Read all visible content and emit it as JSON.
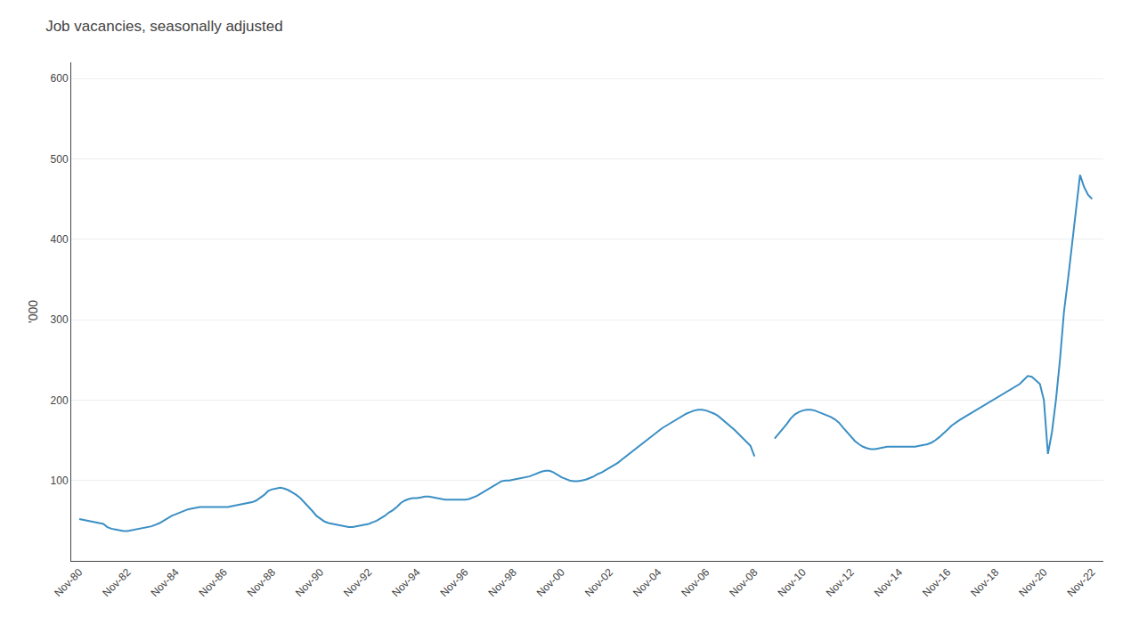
{
  "chart_data": {
    "type": "line",
    "title": "Job vacancies, seasonally adjusted",
    "ylabel": "'000",
    "xlim": [
      1980.5,
      2023.3
    ],
    "xticks": [
      {
        "value": 1980.833,
        "label": "Nov-80"
      },
      {
        "value": 1982.833,
        "label": "Nov-82"
      },
      {
        "value": 1984.833,
        "label": "Nov-84"
      },
      {
        "value": 1986.833,
        "label": "Nov-86"
      },
      {
        "value": 1988.833,
        "label": "Nov-88"
      },
      {
        "value": 1990.833,
        "label": "Nov-90"
      },
      {
        "value": 1992.833,
        "label": "Nov-92"
      },
      {
        "value": 1994.833,
        "label": "Nov-94"
      },
      {
        "value": 1996.833,
        "label": "Nov-96"
      },
      {
        "value": 1998.833,
        "label": "Nov-98"
      },
      {
        "value": 2000.833,
        "label": "Nov-00"
      },
      {
        "value": 2002.833,
        "label": "Nov-02"
      },
      {
        "value": 2004.833,
        "label": "Nov-04"
      },
      {
        "value": 2006.833,
        "label": "Nov-06"
      },
      {
        "value": 2008.833,
        "label": "Nov-08"
      },
      {
        "value": 2010.833,
        "label": "Nov-10"
      },
      {
        "value": 2012.833,
        "label": "Nov-12"
      },
      {
        "value": 2014.833,
        "label": "Nov-14"
      },
      {
        "value": 2016.833,
        "label": "Nov-16"
      },
      {
        "value": 2018.833,
        "label": "Nov-18"
      },
      {
        "value": 2020.833,
        "label": "Nov-20"
      },
      {
        "value": 2022.833,
        "label": "Nov-22"
      }
    ],
    "ylim": [
      0,
      620
    ],
    "yticks": [
      100,
      200,
      300,
      400,
      500,
      600
    ],
    "grid": true,
    "series": [
      {
        "color": "#3b8fc4",
        "x": [
          1980.833,
          1981.0,
          1981.167,
          1981.333,
          1981.5,
          1981.667,
          1981.833,
          1982.0,
          1982.167,
          1982.333,
          1982.5,
          1982.667,
          1982.833,
          1983.0,
          1983.167,
          1983.333,
          1983.5,
          1983.667,
          1983.833,
          1984.0,
          1984.167,
          1984.333,
          1984.5,
          1984.667,
          1984.833,
          1985.0,
          1985.167,
          1985.333,
          1985.5,
          1985.667,
          1985.833,
          1986.0,
          1986.167,
          1986.333,
          1986.5,
          1986.667,
          1986.833,
          1987.0,
          1987.167,
          1987.333,
          1987.5,
          1987.667,
          1987.833,
          1988.0,
          1988.167,
          1988.333,
          1988.5,
          1988.667,
          1988.833,
          1989.0,
          1989.167,
          1989.333,
          1989.5,
          1989.667,
          1989.833,
          1990.0,
          1990.167,
          1990.333,
          1990.5,
          1990.667,
          1990.833,
          1991.0,
          1991.167,
          1991.333,
          1991.5,
          1991.667,
          1991.833,
          1992.0,
          1992.167,
          1992.333,
          1992.5,
          1992.667,
          1992.833,
          1993.0,
          1993.167,
          1993.333,
          1993.5,
          1993.667,
          1993.833,
          1994.0,
          1994.167,
          1994.333,
          1994.5,
          1994.667,
          1994.833,
          1995.0,
          1995.167,
          1995.333,
          1995.5,
          1995.667,
          1995.833,
          1996.0,
          1996.167,
          1996.333,
          1996.5,
          1996.667,
          1996.833,
          1997.0,
          1997.167,
          1997.333,
          1997.5,
          1997.667,
          1997.833,
          1998.0,
          1998.167,
          1998.333,
          1998.5,
          1998.667,
          1998.833,
          1999.0,
          1999.167,
          1999.333,
          1999.5,
          1999.667,
          1999.833,
          2000.0,
          2000.167,
          2000.333,
          2000.5,
          2000.667,
          2000.833,
          2001.0,
          2001.167,
          2001.333,
          2001.5,
          2001.667,
          2001.833,
          2002.0,
          2002.167,
          2002.333,
          2002.5,
          2002.667,
          2002.833,
          2003.0,
          2003.167,
          2003.333,
          2003.5,
          2003.667,
          2003.833,
          2004.0,
          2004.167,
          2004.333,
          2004.5,
          2004.667,
          2004.833,
          2005.0,
          2005.167,
          2005.333,
          2005.5,
          2005.667,
          2005.833,
          2006.0,
          2006.167,
          2006.333,
          2006.5,
          2006.667,
          2006.833,
          2007.0,
          2007.167,
          2007.333,
          2007.5,
          2007.667,
          2007.833,
          2008.0,
          2008.167,
          2008.333,
          2008.5,
          2008.667,
          2008.833
        ],
        "values": [
          52,
          51,
          50,
          49,
          48,
          47,
          46,
          42,
          40,
          39,
          38,
          37,
          37,
          38,
          39,
          40,
          41,
          42,
          43,
          45,
          47,
          50,
          53,
          56,
          58,
          60,
          62,
          64,
          65,
          66,
          67,
          67,
          67,
          67,
          67,
          67,
          67,
          67,
          68,
          69,
          70,
          71,
          72,
          73,
          75,
          78,
          82,
          87,
          89,
          90,
          91,
          90,
          88,
          85,
          82,
          78,
          73,
          68,
          62,
          56,
          52,
          49,
          47,
          46,
          45,
          44,
          43,
          42,
          42,
          43,
          44,
          45,
          46,
          48,
          50,
          53,
          56,
          60,
          63,
          67,
          72,
          75,
          77,
          78,
          78,
          79,
          80,
          80,
          79,
          78,
          77,
          76,
          76,
          76,
          76,
          76,
          76,
          77,
          79,
          81,
          84,
          87,
          90,
          93,
          96,
          99,
          100,
          100,
          101,
          102,
          103,
          104,
          105,
          107,
          109,
          111,
          112,
          112,
          110,
          107,
          104,
          102,
          100,
          99,
          99,
          100,
          101,
          103,
          105,
          108,
          110,
          113,
          116,
          119,
          122,
          126,
          130,
          134,
          138,
          142,
          146,
          150,
          154,
          158,
          162,
          165,
          168,
          171,
          174,
          177,
          180,
          183,
          185,
          187,
          188,
          188,
          187,
          185,
          183,
          180,
          176,
          172,
          168,
          163,
          158,
          153,
          148,
          143,
          130
        ]
      },
      {
        "color": "#3b8fc4",
        "x": [
          2009.667,
          2009.833,
          2010.0,
          2010.167,
          2010.333,
          2010.5,
          2010.667,
          2010.833,
          2011.0,
          2011.167,
          2011.333,
          2011.5,
          2011.667,
          2011.833,
          2012.0,
          2012.167,
          2012.333,
          2012.5,
          2012.667,
          2012.833,
          2013.0,
          2013.167,
          2013.333,
          2013.5,
          2013.667,
          2013.833,
          2014.0,
          2014.167,
          2014.333,
          2014.5,
          2014.667,
          2014.833,
          2015.0,
          2015.167,
          2015.333,
          2015.5,
          2015.667,
          2015.833,
          2016.0,
          2016.167,
          2016.333,
          2016.5,
          2016.667,
          2016.833,
          2017.0,
          2017.167,
          2017.333,
          2017.5,
          2017.667,
          2017.833,
          2018.0,
          2018.167,
          2018.333,
          2018.5,
          2018.667,
          2018.833,
          2019.0,
          2019.167,
          2019.333,
          2019.5,
          2019.667,
          2019.833,
          2020.0,
          2020.167,
          2020.333,
          2020.5,
          2020.667,
          2020.833,
          2021.0,
          2021.167,
          2021.333,
          2021.5,
          2021.667,
          2021.833,
          2022.0,
          2022.167,
          2022.333,
          2022.5,
          2022.667,
          2022.833
        ],
        "values": [
          152,
          158,
          163,
          170,
          177,
          182,
          185,
          187,
          188,
          188,
          187,
          185,
          183,
          181,
          179,
          176,
          172,
          166,
          160,
          154,
          149,
          145,
          142,
          140,
          139,
          139,
          140,
          141,
          142,
          142,
          142,
          142,
          142,
          142,
          142,
          142,
          143,
          144,
          145,
          147,
          150,
          154,
          158,
          163,
          168,
          172,
          175,
          178,
          181,
          184,
          187,
          190,
          193,
          196,
          199,
          202,
          205,
          208,
          211,
          214,
          217,
          220,
          225,
          230,
          229,
          225,
          220,
          200,
          133,
          160,
          200,
          250,
          310,
          350,
          395,
          440,
          480,
          465,
          455,
          450
        ]
      }
    ]
  }
}
